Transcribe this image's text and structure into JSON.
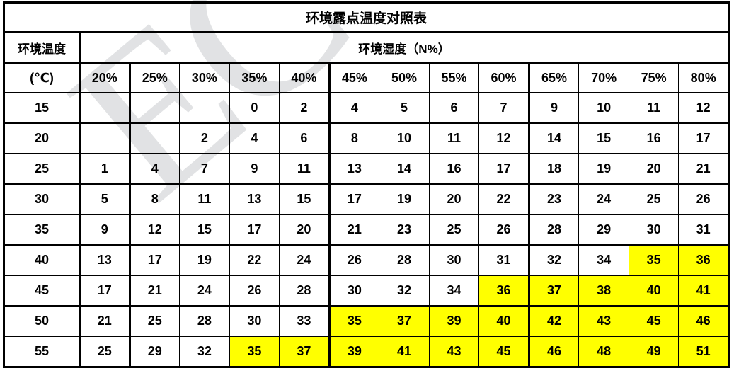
{
  "title": "环境露点温度对照表",
  "watermark_text": "EC",
  "colors": {
    "highlight": "#ffff00",
    "border": "#000000",
    "watermark": "#c9ccce"
  },
  "header": {
    "temp_label": "环境温度",
    "temp_unit": "(℃)",
    "humidity_label": "环境湿度（N%）",
    "humidity_columns": [
      "20%",
      "25%",
      "30%",
      "35%",
      "40%",
      "45%",
      "50%",
      "55%",
      "60%",
      "65%",
      "70%",
      "75%",
      "80%"
    ]
  },
  "rows": [
    {
      "temp": "15",
      "values": [
        "",
        "",
        "",
        "0",
        "2",
        "4",
        "5",
        "6",
        "7",
        "9",
        "10",
        "11",
        "12"
      ],
      "highlight": [
        0,
        0,
        0,
        0,
        0,
        0,
        0,
        0,
        0,
        0,
        0,
        0,
        0
      ]
    },
    {
      "temp": "20",
      "values": [
        "",
        "",
        "2",
        "4",
        "6",
        "8",
        "10",
        "11",
        "12",
        "14",
        "15",
        "16",
        "17"
      ],
      "highlight": [
        0,
        0,
        0,
        0,
        0,
        0,
        0,
        0,
        0,
        0,
        0,
        0,
        0
      ]
    },
    {
      "temp": "25",
      "values": [
        "1",
        "4",
        "7",
        "9",
        "11",
        "13",
        "14",
        "16",
        "17",
        "18",
        "19",
        "20",
        "21"
      ],
      "highlight": [
        0,
        0,
        0,
        0,
        0,
        0,
        0,
        0,
        0,
        0,
        0,
        0,
        0
      ]
    },
    {
      "temp": "30",
      "values": [
        "5",
        "8",
        "11",
        "13",
        "15",
        "17",
        "19",
        "20",
        "22",
        "23",
        "24",
        "25",
        "26"
      ],
      "highlight": [
        0,
        0,
        0,
        0,
        0,
        0,
        0,
        0,
        0,
        0,
        0,
        0,
        0
      ]
    },
    {
      "temp": "35",
      "values": [
        "9",
        "12",
        "15",
        "17",
        "20",
        "21",
        "23",
        "25",
        "26",
        "28",
        "29",
        "30",
        "31"
      ],
      "highlight": [
        0,
        0,
        0,
        0,
        0,
        0,
        0,
        0,
        0,
        0,
        0,
        0,
        0
      ]
    },
    {
      "temp": "40",
      "values": [
        "13",
        "17",
        "19",
        "22",
        "24",
        "26",
        "28",
        "30",
        "31",
        "32",
        "34",
        "35",
        "36"
      ],
      "highlight": [
        0,
        0,
        0,
        0,
        0,
        0,
        0,
        0,
        0,
        0,
        0,
        1,
        1
      ]
    },
    {
      "temp": "45",
      "values": [
        "17",
        "21",
        "24",
        "26",
        "28",
        "30",
        "32",
        "34",
        "36",
        "37",
        "38",
        "40",
        "41"
      ],
      "highlight": [
        0,
        0,
        0,
        0,
        0,
        0,
        0,
        0,
        1,
        1,
        1,
        1,
        1
      ]
    },
    {
      "temp": "50",
      "values": [
        "21",
        "25",
        "28",
        "30",
        "33",
        "35",
        "37",
        "39",
        "40",
        "42",
        "43",
        "45",
        "46"
      ],
      "highlight": [
        0,
        0,
        0,
        0,
        0,
        1,
        1,
        1,
        1,
        1,
        1,
        1,
        1
      ]
    },
    {
      "temp": "55",
      "values": [
        "25",
        "29",
        "32",
        "35",
        "37",
        "39",
        "41",
        "43",
        "45",
        "46",
        "48",
        "49",
        "51"
      ],
      "highlight": [
        0,
        0,
        0,
        1,
        1,
        1,
        1,
        1,
        1,
        1,
        1,
        1,
        1
      ]
    }
  ]
}
